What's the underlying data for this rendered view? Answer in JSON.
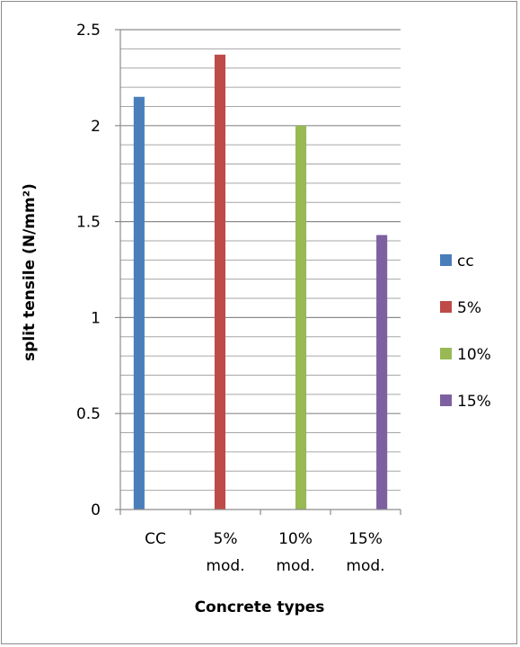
{
  "chart_data": {
    "type": "bar",
    "categories": [
      "CC",
      "5% mod.",
      "10% mod.",
      "15% mod."
    ],
    "series": [
      {
        "name": "cc",
        "color": "#4a7ebb",
        "values": [
          2.15,
          null,
          null,
          null
        ]
      },
      {
        "name": "5%",
        "color": "#be4b48",
        "values": [
          null,
          2.37,
          null,
          null
        ]
      },
      {
        "name": "10%",
        "color": "#98b954",
        "values": [
          null,
          null,
          2.0,
          null
        ]
      },
      {
        "name": "15%",
        "color": "#7d60a0",
        "values": [
          null,
          null,
          null,
          1.43
        ]
      }
    ],
    "xlabel": "Concrete types",
    "ylabel": "split tensile (N/mm²)",
    "ylim": [
      0,
      2.5
    ],
    "yticks": [
      "0",
      "0.5",
      "1",
      "1.5",
      "2",
      "2.5"
    ],
    "category_labels": [
      [
        "CC"
      ],
      [
        "5%",
        "mod."
      ],
      [
        "10%",
        "mod."
      ],
      [
        "15%",
        "mod."
      ]
    ],
    "grid": "horizontal major and minor",
    "legend_position": "right"
  }
}
